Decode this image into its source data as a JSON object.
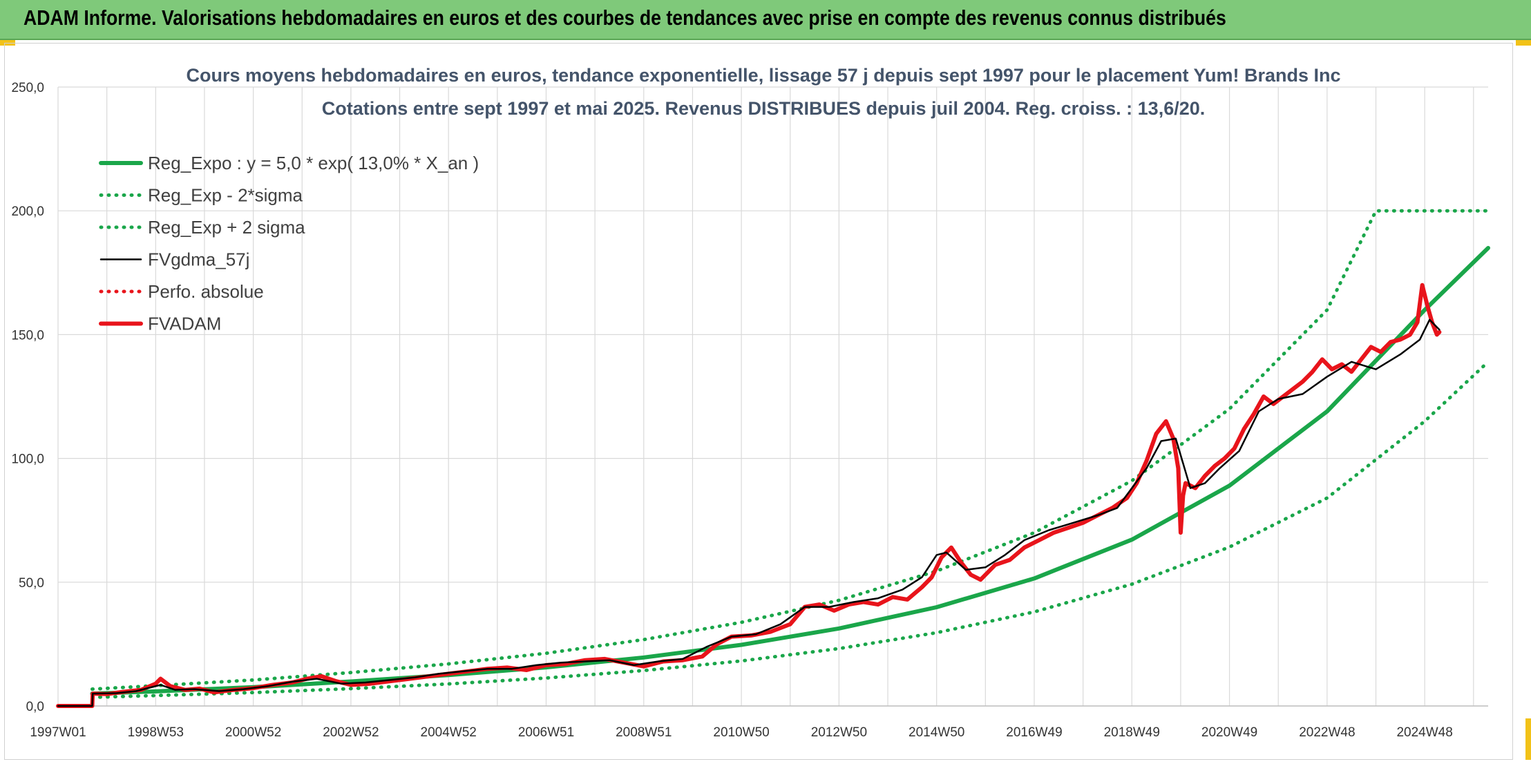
{
  "header": {
    "title": "ADAM Informe. Valorisations hebdomadaires en euros et des courbes de tendances avec prise en compte des revenus connus distribués"
  },
  "colors": {
    "header_bg": "#7fc97a",
    "reg_expo": "#1aa64a",
    "reg_bands": "#1aa64a",
    "fvgdma": "#000000",
    "perfo": "#e8141b",
    "fvadam": "#e8141b",
    "grid": "#d9d9d9"
  },
  "chart_data": {
    "type": "line",
    "title": "Cours moyens hebdomadaires en euros, tendance exponentielle, lissage 57 j depuis sept 1997 pour le placement Yum! Brands Inc",
    "subtitle": "Cotations entre sept 1997 et mai 2025. Revenus DISTRIBUES depuis juil 2004. Reg. croiss. : 13,6/20.",
    "ylim": [
      0,
      250
    ],
    "yticks": [
      "0,0",
      "50,0",
      "100,0",
      "150,0",
      "200,0",
      "250,0"
    ],
    "xlim": [
      1997.0,
      2026.3
    ],
    "xtick_labels": [
      "1997W01",
      "1998W53",
      "2000W52",
      "2002W52",
      "2004W52",
      "2006W51",
      "2008W51",
      "2010W50",
      "2012W50",
      "2014W50",
      "2016W49",
      "2018W49",
      "2020W49",
      "2022W48",
      "2024W48"
    ],
    "xtick_years": [
      1997.0,
      1999.0,
      2001.0,
      2003.0,
      2005.0,
      2007.0,
      2009.0,
      2011.0,
      2013.0,
      2015.0,
      2017.0,
      2019.0,
      2021.0,
      2023.0,
      2025.0
    ],
    "grid": true,
    "legend_position": "top-left",
    "series": [
      {
        "name": "Reg_Expo : y = 5,0 * exp( 13,0% *  X_an )",
        "style": "solid-thick",
        "color": "#1aa64a",
        "x": [
          1997.7,
          1999.0,
          2001.0,
          2003.0,
          2005.0,
          2007.0,
          2009.0,
          2011.0,
          2013.0,
          2015.0,
          2017.0,
          2019.0,
          2021.0,
          2023.0,
          2025.0,
          2026.3
        ],
        "y": [
          5.0,
          5.9,
          7.6,
          9.9,
          12.5,
          15.6,
          19.6,
          24.7,
          31.3,
          39.9,
          51.5,
          67.2,
          89.0,
          119.0,
          160.0,
          185.0
        ]
      },
      {
        "name": "Reg_Exp - 2*sigma",
        "style": "dotted",
        "color": "#1aa64a",
        "x": [
          1997.7,
          1999.0,
          2001.0,
          2003.0,
          2005.0,
          2007.0,
          2009.0,
          2011.0,
          2013.0,
          2015.0,
          2017.0,
          2019.0,
          2021.0,
          2023.0,
          2025.0,
          2026.3
        ],
        "y": [
          3.5,
          4.2,
          5.4,
          7.0,
          8.9,
          11.3,
          14.3,
          18.2,
          23.2,
          29.6,
          38.0,
          49.2,
          64.2,
          84.0,
          115.0,
          139.0
        ]
      },
      {
        "name": "Reg_Exp + 2 sigma",
        "style": "dotted",
        "color": "#1aa64a",
        "x": [
          1997.7,
          1999.0,
          2001.0,
          2003.0,
          2005.0,
          2007.0,
          2009.0,
          2011.0,
          2013.0,
          2015.0,
          2017.0,
          2019.0,
          2021.0,
          2023.0,
          2024.0,
          2026.3
        ],
        "y": [
          6.8,
          8.2,
          10.5,
          13.5,
          17.0,
          21.3,
          26.8,
          33.8,
          42.7,
          54.5,
          70.0,
          91.0,
          120.0,
          160.0,
          200.0,
          200.0
        ]
      },
      {
        "name": "FVgdma_57j",
        "style": "solid-thin",
        "color": "#000000",
        "x": [
          1997.0,
          1997.7,
          1997.71,
          1998.2,
          1998.6,
          1999.1,
          1999.4,
          1999.8,
          2000.3,
          2000.8,
          2001.3,
          2001.8,
          2002.3,
          2002.8,
          2003.3,
          2003.8,
          2004.3,
          2004.8,
          2005.3,
          2005.8,
          2006.3,
          2006.8,
          2007.3,
          2007.8,
          2008.3,
          2008.8,
          2009.3,
          2009.8,
          2010.3,
          2010.8,
          2011.3,
          2011.8,
          2012.3,
          2012.8,
          2013.3,
          2013.8,
          2014.3,
          2014.7,
          2015.0,
          2015.2,
          2015.6,
          2016.0,
          2016.4,
          2016.8,
          2017.3,
          2017.8,
          2018.3,
          2018.7,
          2019.0,
          2019.3,
          2019.6,
          2019.9,
          2020.2,
          2020.5,
          2020.8,
          2021.2,
          2021.6,
          2022.0,
          2022.5,
          2023.0,
          2023.5,
          2024.0,
          2024.5,
          2024.9,
          2025.1,
          2025.3
        ],
        "y": [
          0,
          0,
          5.0,
          5.2,
          6.0,
          8.5,
          6.5,
          6.8,
          6.0,
          6.8,
          8.0,
          9.8,
          11.0,
          9.0,
          9.5,
          10.5,
          11.5,
          13.0,
          14.0,
          15.0,
          15.0,
          16.5,
          17.5,
          18.0,
          18.5,
          16.5,
          18.0,
          19.0,
          24.0,
          28.0,
          29.0,
          33.0,
          40.0,
          40.0,
          42.0,
          43.5,
          47.0,
          52.0,
          61.0,
          62.0,
          55.0,
          56.0,
          61.0,
          67.0,
          71.0,
          74.0,
          77.0,
          80.0,
          88.0,
          96.0,
          107.0,
          108.0,
          88.0,
          90.0,
          96.0,
          103.0,
          119.0,
          124.0,
          126.0,
          133.0,
          139.0,
          136.0,
          142.0,
          148.0,
          156.0,
          152.0
        ]
      },
      {
        "name": "Perfo. absolue",
        "style": "dotted",
        "color": "#e8141b",
        "x": [],
        "y": []
      },
      {
        "name": "FVADAM",
        "style": "solid-thick",
        "color": "#e8141b",
        "x": [
          1997.0,
          1997.7,
          1997.71,
          1998.0,
          1998.3,
          1998.7,
          1999.0,
          1999.1,
          1999.3,
          1999.6,
          1999.9,
          2000.2,
          2000.6,
          2001.0,
          2001.4,
          2001.8,
          2002.1,
          2002.4,
          2002.7,
          2003.0,
          2003.4,
          2003.8,
          2004.2,
          2004.6,
          2005.0,
          2005.4,
          2005.8,
          2006.2,
          2006.6,
          2007.0,
          2007.4,
          2007.8,
          2008.2,
          2008.6,
          2009.0,
          2009.4,
          2009.8,
          2010.2,
          2010.5,
          2010.8,
          2011.2,
          2011.6,
          2012.0,
          2012.3,
          2012.6,
          2012.9,
          2013.2,
          2013.5,
          2013.8,
          2014.1,
          2014.4,
          2014.7,
          2014.9,
          2015.1,
          2015.3,
          2015.5,
          2015.7,
          2015.9,
          2016.2,
          2016.5,
          2016.8,
          2017.1,
          2017.4,
          2017.7,
          2018.0,
          2018.3,
          2018.6,
          2018.9,
          2019.1,
          2019.3,
          2019.5,
          2019.7,
          2019.85,
          2019.95,
          2020.0,
          2020.05,
          2020.1,
          2020.3,
          2020.5,
          2020.7,
          2020.9,
          2021.1,
          2021.3,
          2021.5,
          2021.7,
          2021.9,
          2022.1,
          2022.3,
          2022.5,
          2022.7,
          2022.9,
          2023.1,
          2023.3,
          2023.5,
          2023.7,
          2023.9,
          2024.1,
          2024.3,
          2024.5,
          2024.7,
          2024.85,
          2024.95,
          2025.05,
          2025.15,
          2025.25,
          2025.3
        ],
        "y": [
          0,
          0,
          5.0,
          4.8,
          5.6,
          6.5,
          9.0,
          11.0,
          8.0,
          6.5,
          7.0,
          5.5,
          6.5,
          7.2,
          8.5,
          9.5,
          11.0,
          12.0,
          10.0,
          8.5,
          9.0,
          10.0,
          11.0,
          12.0,
          13.0,
          14.0,
          15.0,
          15.5,
          14.5,
          16.5,
          17.0,
          18.5,
          19.0,
          17.5,
          16.0,
          18.0,
          18.5,
          20.0,
          25.0,
          28.0,
          28.5,
          30.0,
          33.0,
          40.0,
          41.0,
          38.5,
          41.0,
          42.0,
          41.0,
          44.0,
          43.0,
          48.0,
          52.0,
          60.0,
          64.0,
          58.0,
          53.0,
          51.0,
          57.0,
          59.0,
          64.0,
          67.0,
          70.0,
          72.0,
          74.0,
          77.0,
          80.0,
          84.0,
          90.0,
          99.0,
          110.0,
          115.0,
          108.0,
          96.0,
          70.0,
          85.0,
          90.0,
          88.0,
          93.0,
          97.0,
          100.0,
          104.0,
          112.0,
          118.0,
          125.0,
          122.0,
          125.0,
          128.0,
          131.0,
          135.0,
          140.0,
          136.0,
          138.0,
          135.0,
          140.0,
          145.0,
          143.0,
          147.0,
          148.0,
          150.0,
          155.0,
          170.0,
          162.0,
          155.0,
          150.0,
          151.0
        ]
      }
    ]
  }
}
